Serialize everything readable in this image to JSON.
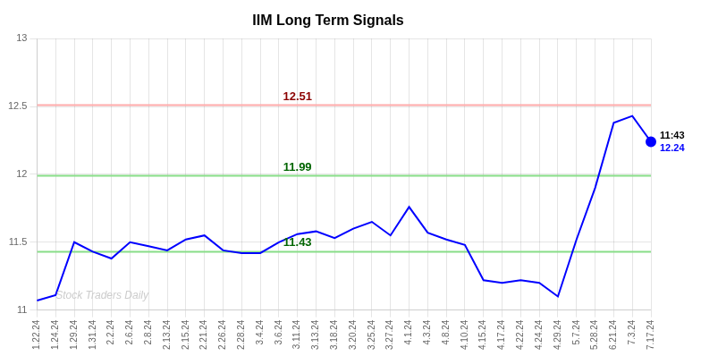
{
  "chart_data": {
    "type": "line",
    "title": "IIM Long Term Signals",
    "categories": [
      "1.22.24",
      "1.24.24",
      "1.29.24",
      "1.31.24",
      "2.2.24",
      "2.6.24",
      "2.8.24",
      "2.13.24",
      "2.15.24",
      "2.21.24",
      "2.26.24",
      "2.28.24",
      "3.4.24",
      "3.6.24",
      "3.11.24",
      "3.13.24",
      "3.18.24",
      "3.20.24",
      "3.25.24",
      "3.27.24",
      "4.1.24",
      "4.3.24",
      "4.8.24",
      "4.10.24",
      "4.15.24",
      "4.17.24",
      "4.22.24",
      "4.24.24",
      "4.29.24",
      "5.7.24",
      "5.28.24",
      "6.21.24",
      "7.3.24",
      "7.17.24"
    ],
    "values": [
      11.07,
      11.11,
      11.5,
      11.43,
      11.38,
      11.5,
      11.47,
      11.44,
      11.52,
      11.55,
      11.44,
      11.42,
      11.42,
      11.5,
      11.56,
      11.58,
      11.53,
      11.6,
      11.65,
      11.55,
      11.76,
      11.57,
      11.52,
      11.48,
      11.22,
      11.2,
      11.22,
      11.2,
      11.1,
      11.52,
      11.9,
      12.38,
      12.43,
      12.24
    ],
    "color": "blue",
    "ylim": [
      11.0,
      13.0
    ],
    "yticks": [
      11,
      11.5,
      12,
      12.5,
      13
    ],
    "grid": true,
    "annotations": [
      {
        "type": "hline",
        "y": 12.51,
        "color": "#ffaaaa",
        "text": "12.51",
        "text_color": "#8b0000",
        "x": "3.11.24"
      },
      {
        "type": "hline",
        "y": 11.99,
        "color": "#88dd88",
        "text": "11.99",
        "text_color": "#006400",
        "x": "3.11.24"
      },
      {
        "type": "hline",
        "y": 11.43,
        "color": "#88dd88",
        "text": "11.43",
        "text_color": "#006400",
        "x": "3.11.24"
      },
      {
        "type": "text",
        "text": "11:43",
        "x": "7.17.24",
        "y": 12.24,
        "color": "black"
      },
      {
        "type": "text",
        "text": "12.24",
        "x": "7.17.24",
        "y": 12.24,
        "color": "blue"
      },
      {
        "type": "text",
        "text": "Stock Traders Daily",
        "x": "1.24.24",
        "y": 11.05,
        "color": "#cccccc"
      }
    ]
  }
}
